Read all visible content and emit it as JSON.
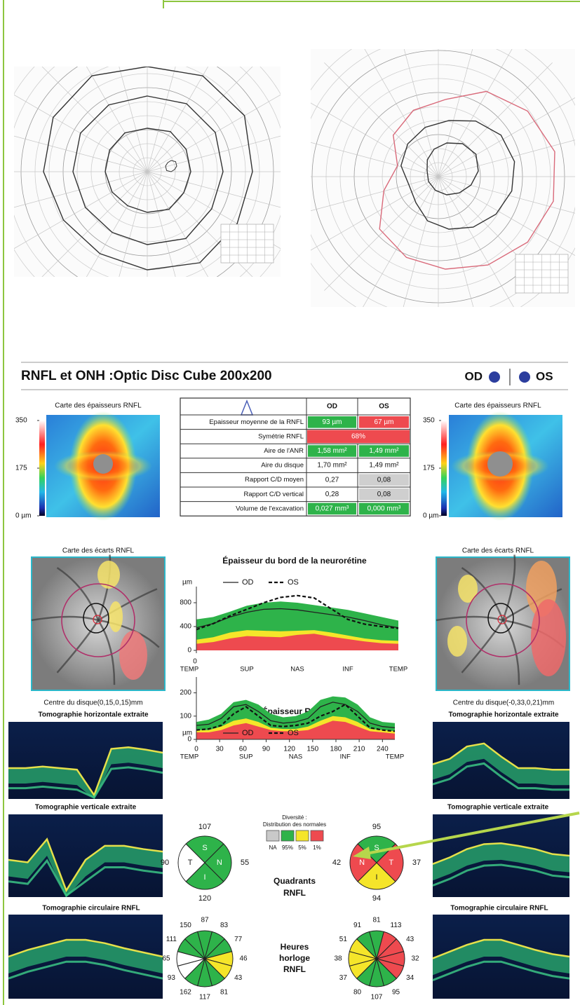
{
  "header": {
    "title": "RNFL et ONH :Optic Disc Cube 200x200",
    "od": "OD",
    "os": "OS"
  },
  "od_side": {
    "thickness_title": "Carte des épaisseurs RNFL",
    "scale": [
      350,
      175,
      {
        "value": 0,
        "label": "0 µm"
      }
    ],
    "scale_range": [
      0,
      350
    ],
    "deviation_title": "Carte des écarts RNFL",
    "disc_center": "Centre du disque(0,15,0,15)mm",
    "horizontal": "Tomographie horizontale extraite",
    "vertical": "Tomographie verticale extraite",
    "circular": "Tomographie circulaire RNFL"
  },
  "os_side": {
    "thickness_title": "Carte des épaisseurs RNFL",
    "scale": [
      350,
      175,
      {
        "value": 0,
        "label": "0 µm"
      }
    ],
    "scale_range": [
      0,
      350
    ],
    "deviation_title": "Carte des écarts RNFL",
    "disc_center": "Centre du disque(-0,33,0,21)mm",
    "horizontal": "Tomographie horizontale extraite",
    "vertical": "Tomographie verticale extraite",
    "circular": "Tomographie circulaire RNFL"
  },
  "table": {
    "columns": [
      "OD",
      "OS"
    ],
    "rows": [
      {
        "label": "Epaisseur moyenne de la RNFL",
        "od": "93 µm",
        "os": "67 µm",
        "od_color": "#2eb34a",
        "os_color": "#ee4a4f"
      },
      {
        "label": "Symétrie RNFL",
        "both": "68%",
        "both_color": "#ee4a4f"
      },
      {
        "label": "Aire de l'ANR",
        "od": "1,58 mm²",
        "os": "1,49 mm²",
        "od_color": "#2eb34a",
        "os_color": "#2eb34a"
      },
      {
        "label": "Aire du disque",
        "od": "1,70 mm²",
        "os": "1,49 mm²",
        "od_color": "#ffffff",
        "os_color": "#ffffff"
      },
      {
        "label": "Rapport C/D moyen",
        "od": "0,27",
        "os": "0,08",
        "od_color": "#ffffff",
        "os_color": "#cfcfcf"
      },
      {
        "label": "Rapport C/D vertical",
        "od": "0,28",
        "os": "0,08",
        "od_color": "#ffffff",
        "os_color": "#cfcfcf"
      },
      {
        "label": "Volume de l'excavation",
        "od": "0,027 mm³",
        "os": "0,000 mm³",
        "od_color": "#2eb34a",
        "os_color": "#2eb34a"
      }
    ]
  },
  "rim_chart": {
    "type": "line",
    "title": "Épaisseur du bord de la neurorétine",
    "y_label": "µm",
    "x_origin_label": "0",
    "categories": [
      "TEMP",
      "SUP",
      "NAS",
      "INF",
      "TEMP"
    ],
    "ylim": [
      0,
      1000
    ],
    "yticks": [
      0,
      400,
      800
    ],
    "series": [
      {
        "name": "OD",
        "color": "#222222",
        "dash": false,
        "values": [
          380,
          450,
          560,
          640,
          690,
          700,
          680,
          640,
          600,
          560,
          500,
          430,
          380
        ]
      },
      {
        "name": "OS",
        "color": "#111111",
        "dash": true,
        "values": [
          350,
          450,
          580,
          690,
          800,
          890,
          920,
          880,
          700,
          520,
          440,
          400,
          370
        ]
      }
    ],
    "bands": [
      {
        "color": "#2eb34a",
        "values": [
          520,
          560,
          650,
          750,
          800,
          820,
          800,
          760,
          720,
          680,
          620,
          560,
          500
        ]
      },
      {
        "color": "#f5e52a",
        "values": [
          180,
          220,
          300,
          340,
          330,
          320,
          330,
          340,
          300,
          250,
          200,
          170,
          160
        ]
      },
      {
        "color": "#ee4a4f",
        "values": [
          110,
          140,
          200,
          240,
          230,
          220,
          260,
          280,
          230,
          190,
          150,
          120,
          110
        ]
      }
    ]
  },
  "rnfl_chart": {
    "type": "line",
    "title": "Épaisseur RNFL",
    "y_label": "µm",
    "categories": [
      "TEMP",
      "SUP",
      "NAS",
      "INF",
      "TEMP"
    ],
    "xlim": [
      0,
      256
    ],
    "xticks": [
      0,
      30,
      60,
      90,
      120,
      150,
      180,
      210,
      240
    ],
    "ylim": [
      0,
      250
    ],
    "yticks": [
      0,
      100,
      200
    ],
    "series": [
      {
        "name": "OD",
        "color": "#222222",
        "dash": false,
        "values": [
          60,
          65,
          90,
          140,
          150,
          120,
          80,
          70,
          75,
          90,
          140,
          160,
          150,
          120,
          70,
          55,
          50
        ]
      },
      {
        "name": "OS",
        "color": "#111111",
        "dash": true,
        "values": [
          40,
          45,
          60,
          110,
          140,
          100,
          60,
          55,
          60,
          70,
          100,
          120,
          150,
          100,
          50,
          40,
          35
        ]
      }
    ],
    "bands": [
      {
        "color": "#2eb34a",
        "values": [
          75,
          85,
          110,
          160,
          170,
          150,
          110,
          95,
          100,
          120,
          170,
          185,
          180,
          150,
          95,
          75,
          70
        ]
      },
      {
        "color": "#f5e52a",
        "values": [
          40,
          40,
          55,
          80,
          90,
          75,
          50,
          45,
          45,
          55,
          80,
          100,
          95,
          75,
          45,
          40,
          35
        ]
      },
      {
        "color": "#ee4a4f",
        "values": [
          30,
          30,
          40,
          60,
          70,
          55,
          40,
          35,
          35,
          40,
          60,
          80,
          75,
          55,
          35,
          30,
          25
        ]
      }
    ]
  },
  "diversity": {
    "title": "Diversité :",
    "subtitle": "Distribution des normales",
    "items": [
      {
        "label": "NA",
        "color": "#c9c9c9"
      },
      {
        "label": "95%",
        "color": "#2eb34a"
      },
      {
        "label": "5%",
        "color": "#f5e52a"
      },
      {
        "label": "1%",
        "color": "#ee4a4f"
      }
    ]
  },
  "quadrants": {
    "title": [
      "Quadrants",
      "RNFL"
    ],
    "od": [
      {
        "letter": "S",
        "value": 107,
        "color": "#2eb34a"
      },
      {
        "letter": "N",
        "value": 55,
        "color": "#2eb34a"
      },
      {
        "letter": "I",
        "value": 120,
        "color": "#2eb34a"
      },
      {
        "letter": "T",
        "value": 90,
        "color": "#ffffff"
      }
    ],
    "os": [
      {
        "letter": "S",
        "value": 95,
        "color": "#2eb34a"
      },
      {
        "letter": "T",
        "value": 37,
        "color": "#ee4a4f"
      },
      {
        "letter": "I",
        "value": 94,
        "color": "#f5e52a"
      },
      {
        "letter": "N",
        "value": 42,
        "color": "#ee4a4f"
      }
    ]
  },
  "clock": {
    "title": [
      "Heures",
      "horloge",
      "RNFL"
    ],
    "od": {
      "values": [
        87,
        83,
        77,
        46,
        43,
        81,
        117,
        162,
        93,
        65,
        111,
        150
      ],
      "colors": [
        "#2eb34a",
        "#2eb34a",
        "#2eb34a",
        "#f5e52a",
        "#f5e52a",
        "#2eb34a",
        "#2eb34a",
        "#2eb34a",
        "#ffffff",
        "#ffffff",
        "#2eb34a",
        "#2eb34a"
      ]
    },
    "os": {
      "values": [
        81,
        113,
        43,
        32,
        34,
        95,
        107,
        80,
        37,
        38,
        51,
        91
      ],
      "colors": [
        "#2eb34a",
        "#ee4a4f",
        "#ee4a4f",
        "#ee4a4f",
        "#ee4a4f",
        "#2eb34a",
        "#2eb34a",
        "#2eb34a",
        "#f5e52a",
        "#f5e52a",
        "#f5e52a",
        "#2eb34a"
      ]
    }
  }
}
